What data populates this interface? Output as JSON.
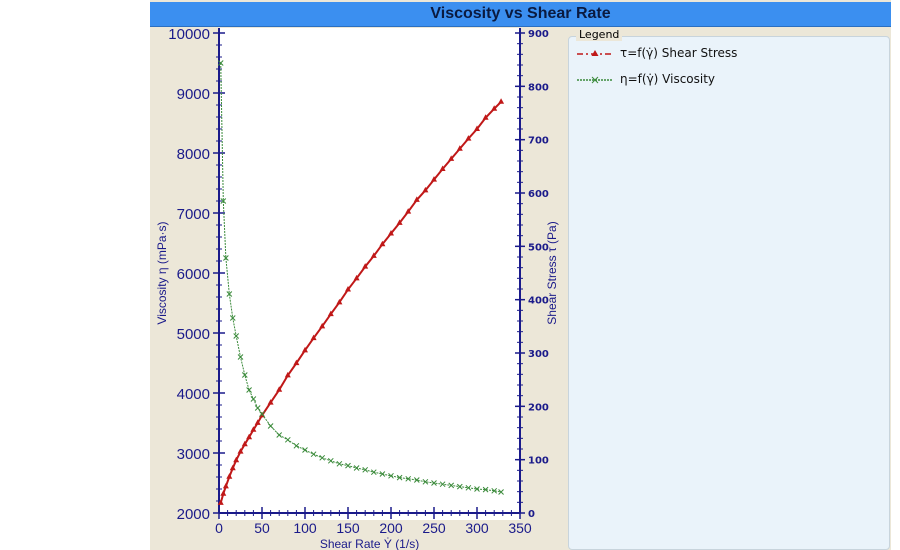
{
  "chart_data": {
    "type": "line",
    "title": "Viscosity vs Shear Rate",
    "xlabel": "Shear Rate Ẏ (1/s)",
    "ylabel_left": "Viscosity η (mPa·s)",
    "ylabel_right": "Shear Stress τ (Pa)",
    "xlim": [
      0,
      350
    ],
    "ylim_left": [
      2000,
      10000
    ],
    "ylim_right": [
      0,
      900
    ],
    "xticks": [
      0,
      50,
      100,
      150,
      200,
      250,
      300,
      350
    ],
    "yticks_left": [
      2000,
      3000,
      4000,
      5000,
      6000,
      7000,
      8000,
      9000,
      10000
    ],
    "yticks_right": [
      0,
      100,
      200,
      300,
      400,
      500,
      600,
      700,
      800,
      900
    ],
    "grid": false,
    "legend_title": "Legend",
    "legend_placement": "right",
    "x": [
      2,
      5,
      8,
      12,
      16,
      20,
      25,
      30,
      35,
      40,
      45,
      50,
      60,
      70,
      80,
      90,
      100,
      110,
      120,
      130,
      140,
      150,
      160,
      170,
      180,
      190,
      200,
      210,
      220,
      230,
      240,
      250,
      260,
      270,
      280,
      290,
      300,
      310,
      320,
      328
    ],
    "series": [
      {
        "name": "τ=f(γ̇) Shear Stress",
        "axis": "right",
        "color": "#c01818",
        "marker": "triangle",
        "values": [
          19,
          36,
          50,
          68,
          84,
          99,
          115,
          129,
          142,
          156,
          169,
          183,
          207,
          231,
          258,
          281,
          305,
          328,
          350,
          373,
          395,
          419,
          440,
          462,
          482,
          504,
          524,
          544,
          565,
          587,
          605,
          625,
          645,
          664,
          683,
          702,
          720,
          741,
          758,
          771
        ]
      },
      {
        "name": "η=f(γ̇) Viscosity",
        "axis": "left",
        "color": "#3a8a3a",
        "marker": "x",
        "values": [
          9500,
          7200,
          6250,
          5650,
          5250,
          4950,
          4600,
          4300,
          4050,
          3900,
          3750,
          3650,
          3450,
          3300,
          3220,
          3120,
          3050,
          2980,
          2920,
          2870,
          2820,
          2790,
          2750,
          2720,
          2680,
          2650,
          2620,
          2590,
          2570,
          2550,
          2520,
          2500,
          2480,
          2460,
          2440,
          2420,
          2400,
          2390,
          2370,
          2350
        ]
      }
    ]
  }
}
